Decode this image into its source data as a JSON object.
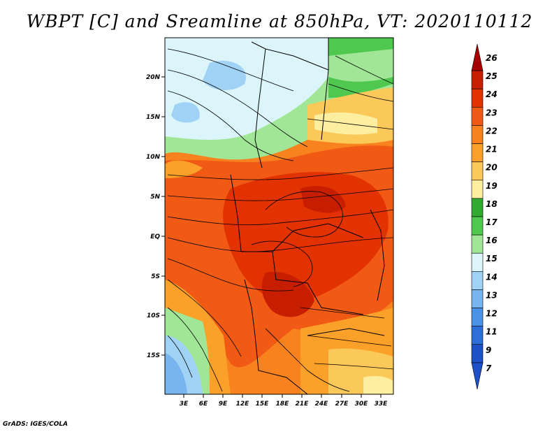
{
  "title": "WBPT [C] and Sreamline at 850hPa, VT: 2020110112",
  "credit": "GrADS: IGES/COLA",
  "map": {
    "lat_labels": [
      "20N",
      "15N",
      "10N",
      "5N",
      "EQ",
      "5S",
      "10S",
      "15S"
    ],
    "lon_labels": [
      "3E",
      "6E",
      "9E",
      "12E",
      "15E",
      "18E",
      "21E",
      "24E",
      "27E",
      "30E",
      "33E"
    ]
  },
  "colorbar": {
    "labels": [
      "26",
      "25",
      "24",
      "23",
      "22",
      "21",
      "20",
      "19",
      "18",
      "17",
      "16",
      "15",
      "14",
      "13",
      "12",
      "11",
      "9",
      "7"
    ],
    "colors": [
      "#a50000",
      "#c81e00",
      "#e13200",
      "#f05a14",
      "#f7821e",
      "#fba028",
      "#fbc85a",
      "#fdeea0",
      "#32aa32",
      "#50c850",
      "#a0e696",
      "#dcf5fa",
      "#a0d2f5",
      "#78b4ee",
      "#4b91e6",
      "#2e6ed8",
      "#1e50c8",
      "#1e50c8"
    ]
  }
}
